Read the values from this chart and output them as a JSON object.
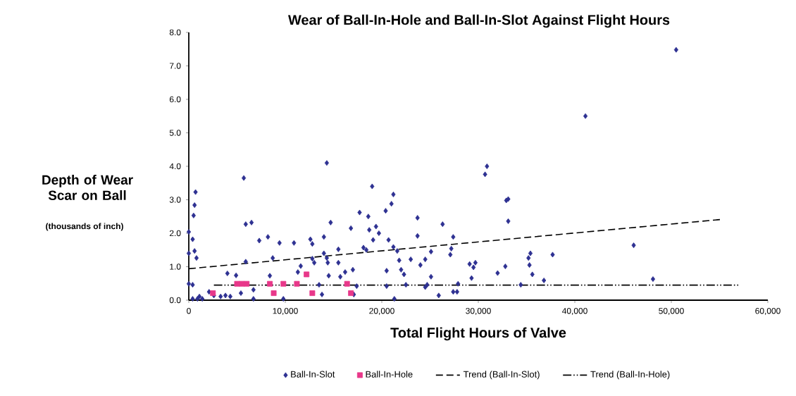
{
  "chart_data": {
    "type": "scatter",
    "title": "Wear of Ball-In-Hole and Ball-In-Slot Against Flight Hours",
    "xlabel": "Total Flight Hours of Valve",
    "ylabel": "Depth of Wear Scar on Ball",
    "annotations": [
      "(thousands of inch)"
    ],
    "xlim": [
      0,
      60000
    ],
    "xticks": [
      0,
      {
        "value": 10000,
        "label": "10,000"
      },
      {
        "value": 20000,
        "label": "20,000"
      },
      {
        "value": 30000,
        "label": "30,000"
      },
      {
        "value": 40000,
        "label": "40,000"
      },
      {
        "value": 50000,
        "label": "50,000"
      },
      {
        "value": 60000,
        "label": "60,000"
      }
    ],
    "ylim": [
      0,
      8
    ],
    "yticks": [
      {
        "value": 0,
        "label": "0.0"
      },
      {
        "value": 1,
        "label": "1.0"
      },
      {
        "value": 2,
        "label": "2.0"
      },
      {
        "value": 3,
        "label": "3.0"
      },
      {
        "value": 4,
        "label": "4.0"
      },
      {
        "value": 5,
        "label": "5.0"
      },
      {
        "value": 6,
        "label": "6.0"
      },
      {
        "value": 7,
        "label": "7.0"
      },
      {
        "value": 8,
        "label": "8.0"
      }
    ],
    "grid": false,
    "legend": "bottom",
    "series": [
      {
        "name": "Ball-In-Slot",
        "marker": "diamond",
        "color": "#2e3192",
        "x": [
          0,
          400,
          0,
          600,
          800,
          700,
          600,
          500,
          0,
          400,
          400,
          900,
          1100,
          1400,
          2100,
          2600,
          3300,
          3800,
          4300,
          4000,
          4900,
          5400,
          5700,
          5900,
          6500,
          5900,
          6700,
          6700,
          7300,
          8200,
          8400,
          8700,
          9400,
          9800,
          10900,
          11300,
          11600,
          12600,
          12800,
          12800,
          13000,
          13500,
          13800,
          14300,
          14000,
          14000,
          14300,
          14400,
          14500,
          14700,
          15500,
          15500,
          15700,
          16200,
          16800,
          17000,
          17100,
          17400,
          17700,
          18100,
          18400,
          18600,
          18700,
          19000,
          19100,
          19400,
          19700,
          20400,
          20500,
          20500,
          20700,
          21000,
          21200,
          21200,
          21300,
          21600,
          21800,
          22000,
          22300,
          22500,
          23000,
          23700,
          23700,
          24000,
          24500,
          24500,
          24700,
          25100,
          25100,
          25900,
          26300,
          27100,
          27200,
          27400,
          27400,
          27800,
          27900,
          29100,
          29300,
          29500,
          29700,
          30700,
          30900,
          32000,
          32800,
          32900,
          33100,
          33100,
          34400,
          35200,
          35400,
          35300,
          35600,
          36800,
          37700,
          41100,
          46100,
          48100,
          50500
        ],
        "values": [
          2.04,
          1.82,
          1.4,
          1.47,
          1.26,
          3.23,
          2.84,
          2.53,
          0.49,
          0.46,
          0.04,
          0.04,
          0.11,
          0.04,
          0.25,
          0.14,
          0.11,
          0.14,
          0.11,
          0.8,
          0.74,
          0.21,
          3.65,
          2.27,
          2.32,
          1.15,
          0.31,
          0.04,
          1.78,
          1.89,
          0.73,
          1.26,
          1.71,
          0.04,
          1.71,
          0.84,
          1.02,
          1.82,
          1.68,
          1.24,
          1.12,
          0.46,
          0.17,
          4.1,
          1.89,
          1.4,
          1.26,
          1.12,
          0.73,
          2.32,
          1.52,
          1.12,
          0.7,
          0.84,
          2.15,
          0.91,
          0.17,
          0.42,
          2.62,
          1.57,
          1.5,
          2.5,
          2.1,
          3.4,
          1.8,
          2.2,
          2.0,
          2.67,
          0.88,
          0.42,
          1.8,
          2.88,
          3.16,
          1.59,
          0.04,
          1.47,
          1.19,
          0.91,
          0.77,
          0.46,
          1.22,
          2.46,
          1.92,
          1.05,
          1.22,
          0.39,
          0.46,
          0.7,
          1.45,
          0.14,
          2.27,
          1.36,
          1.54,
          1.89,
          0.25,
          0.25,
          0.49,
          1.08,
          0.66,
          0.98,
          1.12,
          3.76,
          4.0,
          0.81,
          1.01,
          2.98,
          3.02,
          2.36,
          0.46,
          1.26,
          1.4,
          1.05,
          0.77,
          0.59,
          1.36,
          5.5,
          1.64,
          0.63,
          7.48
        ]
      },
      {
        "name": "Ball-In-Hole",
        "marker": "square",
        "color": "#e8388a",
        "x": [
          2500,
          5000,
          5500,
          6000,
          8400,
          8800,
          9800,
          11200,
          12200,
          12800,
          16400,
          16800
        ],
        "values": [
          0.21,
          0.49,
          0.49,
          0.49,
          0.49,
          0.21,
          0.49,
          0.49,
          0.77,
          0.21,
          0.49,
          0.21
        ]
      },
      {
        "name": "Trend (Ball-In-Slot)",
        "type": "line",
        "line_style": "dashed",
        "color": "#000000",
        "x": [
          0,
          55100
        ],
        "values": [
          0.94,
          2.41
        ]
      },
      {
        "name": "Trend (Ball-In-Hole)",
        "type": "line",
        "line_style": "dashdotdot",
        "color": "#000000",
        "x": [
          2600,
          57100
        ],
        "values": [
          0.45,
          0.45
        ]
      }
    ]
  }
}
